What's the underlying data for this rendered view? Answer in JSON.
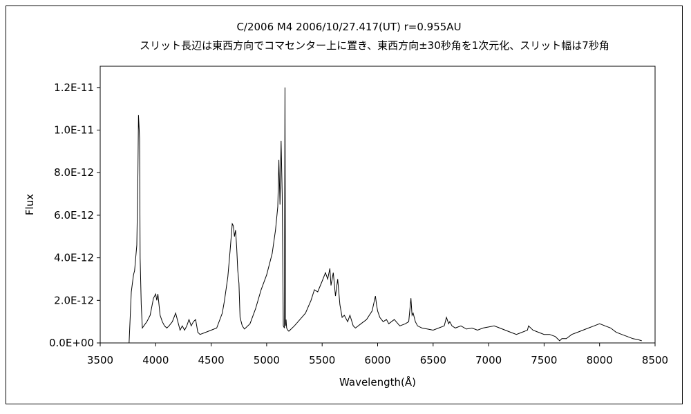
{
  "chart_data": {
    "type": "line",
    "title": "C/2006 M4    2006/10/27.417(UT)    r=0.955AU",
    "subtitle": "スリット長辺は東西方向でコマセンター上に置き、東西方向±30秒角を1次元化、スリット幅は7秒角",
    "xlabel": "Wavelength(Å)",
    "ylabel": "Flux",
    "xlim": [
      3500,
      8500
    ],
    "ylim": [
      0,
      1.3e-11
    ],
    "x_ticks": [
      3500,
      4000,
      4500,
      5000,
      5500,
      6000,
      6500,
      7000,
      7500,
      8000,
      8500
    ],
    "x_tick_labels": [
      "3500",
      "4000",
      "4500",
      "5000",
      "5500",
      "6000",
      "6500",
      "7000",
      "7500",
      "8000",
      "8500"
    ],
    "y_ticks": [
      0,
      2e-12,
      4e-12,
      6e-12,
      8e-12,
      1e-11,
      1.2e-11
    ],
    "y_tick_labels": [
      "0.0E+00",
      "2.0E-12",
      "4.0E-12",
      "6.0E-12",
      "8.0E-12",
      "1.0E-11",
      "1.2E-11"
    ],
    "grid": false,
    "legend": "none",
    "line_color": "#000000",
    "series": [
      {
        "x": [
          3760,
          3780,
          3800,
          3810,
          3830,
          3840,
          3845,
          3850,
          3855,
          3860,
          3870,
          3880,
          3900,
          3920,
          3950,
          3980,
          4000,
          4010,
          4020,
          4030,
          4040,
          4060,
          4080,
          4100,
          4120,
          4150,
          4180,
          4200,
          4220,
          4240,
          4260,
          4280,
          4300,
          4320,
          4340,
          4360,
          4380,
          4400,
          4450,
          4500,
          4550,
          4600,
          4620,
          4650,
          4670,
          4690,
          4700,
          4710,
          4720,
          4730,
          4740,
          4750,
          4760,
          4780,
          4800,
          4850,
          4900,
          4950,
          5000,
          5050,
          5080,
          5100,
          5110,
          5120,
          5130,
          5140,
          5150,
          5160,
          5165,
          5170,
          5175,
          5180,
          5190,
          5200,
          5250,
          5300,
          5350,
          5400,
          5430,
          5460,
          5500,
          5530,
          5550,
          5570,
          5580,
          5600,
          5620,
          5640,
          5660,
          5680,
          5700,
          5730,
          5750,
          5780,
          5800,
          5850,
          5900,
          5950,
          5980,
          5990,
          6000,
          6020,
          6050,
          6080,
          6100,
          6150,
          6200,
          6250,
          6280,
          6300,
          6310,
          6320,
          6340,
          6360,
          6400,
          6450,
          6500,
          6550,
          6600,
          6620,
          6640,
          6650,
          6670,
          6700,
          6750,
          6800,
          6850,
          6900,
          6950,
          7000,
          7050,
          7100,
          7150,
          7200,
          7250,
          7300,
          7350,
          7360,
          7400,
          7450,
          7500,
          7550,
          7600,
          7640,
          7660,
          7700,
          7750,
          7800,
          7850,
          7900,
          7950,
          8000,
          8050,
          8100,
          8150,
          8200,
          8250,
          8300,
          8350,
          8380
        ],
        "y": [
          0,
          2.4e-12,
          3.2e-12,
          3.4e-12,
          4.6e-12,
          8e-12,
          1.07e-11,
          1.02e-11,
          9.6e-12,
          4e-12,
          1.8e-12,
          7e-13,
          8.5e-13,
          1e-12,
          1.3e-12,
          2.1e-12,
          2.3e-12,
          2e-12,
          2.3e-12,
          1.8e-12,
          1.3e-12,
          1e-12,
          8e-13,
          7e-13,
          8e-13,
          1e-12,
          1.4e-12,
          1e-12,
          6e-13,
          8e-13,
          6e-13,
          8e-13,
          1.1e-12,
          8e-13,
          1e-12,
          1.1e-12,
          5e-13,
          4e-13,
          5e-13,
          6e-13,
          7e-13,
          1.4e-12,
          2e-12,
          3.1e-12,
          4.3e-12,
          5.6e-12,
          5.5e-12,
          5e-12,
          5.3e-12,
          4.5e-12,
          3.4e-12,
          2.8e-12,
          1.2e-12,
          8e-13,
          6.5e-13,
          9e-13,
          1.6e-12,
          2.5e-12,
          3.2e-12,
          4.2e-12,
          5.3e-12,
          6.4e-12,
          8.6e-12,
          6.5e-12,
          9.5e-12,
          7e-12,
          8e-13,
          7e-13,
          1.2e-11,
          8e-13,
          1.1e-12,
          7e-13,
          6e-13,
          5.5e-13,
          8e-13,
          1.1e-12,
          1.4e-12,
          2e-12,
          2.5e-12,
          2.4e-12,
          2.9e-12,
          3.3e-12,
          3e-12,
          3.5e-12,
          2.7e-12,
          3.3e-12,
          2.2e-12,
          3e-12,
          1.8e-12,
          1.2e-12,
          1.3e-12,
          1e-12,
          1.3e-12,
          8e-13,
          7e-13,
          9e-13,
          1.1e-12,
          1.5e-12,
          2.2e-12,
          1.8e-12,
          1.5e-12,
          1.2e-12,
          1e-12,
          1.1e-12,
          9e-13,
          1.1e-12,
          8e-13,
          9e-13,
          1e-12,
          2.1e-12,
          1.3e-12,
          1.4e-12,
          1e-12,
          8e-13,
          7e-13,
          6.5e-13,
          6e-13,
          7e-13,
          8e-13,
          1.2e-12,
          9e-13,
          1e-12,
          8e-13,
          7e-13,
          8e-13,
          6.5e-13,
          7e-13,
          6e-13,
          7e-13,
          7.5e-13,
          8e-13,
          7e-13,
          6e-13,
          5e-13,
          4e-13,
          5e-13,
          6e-13,
          8e-13,
          6e-13,
          5e-13,
          4e-13,
          4e-13,
          3e-13,
          1e-13,
          2e-13,
          2e-13,
          4e-13,
          5e-13,
          6e-13,
          7e-13,
          8e-13,
          9e-13,
          8e-13,
          7e-13,
          5e-13,
          4e-13,
          3e-13,
          2e-13,
          1.5e-13,
          1e-13
        ]
      }
    ]
  }
}
